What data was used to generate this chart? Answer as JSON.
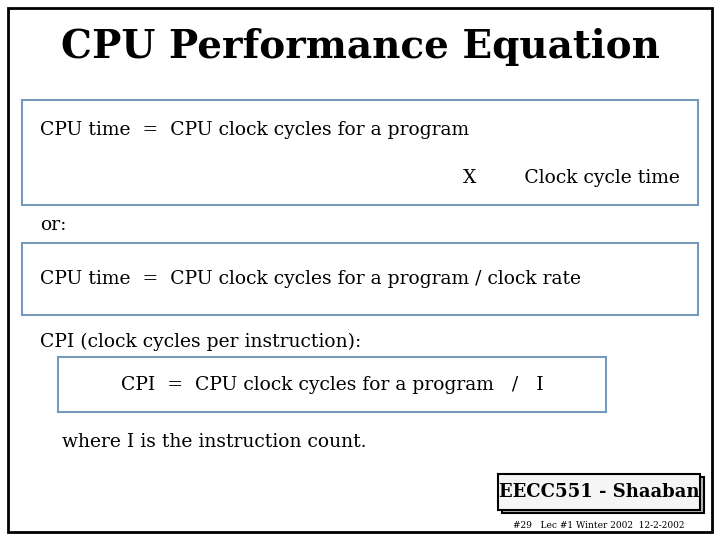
{
  "title": "CPU Performance Equation",
  "title_fontsize": 28,
  "title_fontweight": "bold",
  "bg_color": "#ffffff",
  "border_color": "#000000",
  "box1_line1": "CPU time  =  CPU clock cycles for a program",
  "box1_line2": "X        Clock cycle time",
  "box2_line1": "CPU time  =  CPU clock cycles for a program / clock rate",
  "or_text": "or:",
  "cpi_label": "CPI (clock cycles per instruction):",
  "box3_line1": "CPI  =  CPU clock cycles for a program   /   I",
  "where_text": "where I is the instruction count.",
  "footer_box_text": "EECC551 - Shaaban",
  "footer_sub_text": "#29   Lec #1 Winter 2002  12-2-2002",
  "box_edge_color": "#7799bb",
  "box_face_color": "#ffffff",
  "text_color": "#000000",
  "content_fontsize": 13.5,
  "label_fontsize": 13.5
}
